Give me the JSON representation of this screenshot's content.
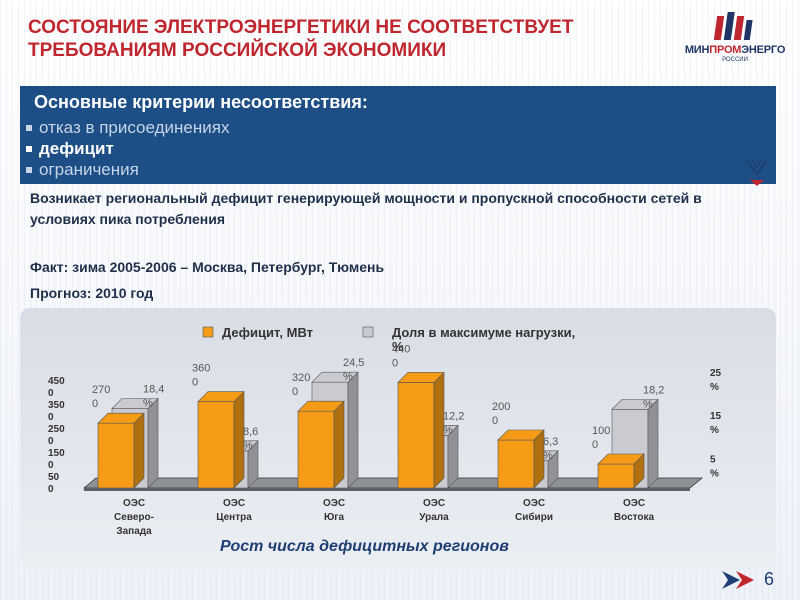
{
  "title": "Состояние электроэнергетики не соответствует требованиям российской экономики",
  "logo": {
    "left": "МИН",
    "mid": "ПРОМ",
    "right": "ЭНЕРГО",
    "sub": "РОССИИ"
  },
  "criteria": {
    "heading": "Основные критерии несоответствия:",
    "items": [
      {
        "label": "отказ в присоединениях",
        "active": false
      },
      {
        "label": "дефицит",
        "active": true
      },
      {
        "label": "ограничения",
        "active": false
      }
    ]
  },
  "description": "Возникает региональный дефицит генерирующей мощности и пропускной способности сетей в условиях пика потребления",
  "fact": "Факт:  зима 2005-2006 – Москва, Петербург, Тюмень",
  "forecast": "Прогноз:     2010 год",
  "caption": "Рост числа дефицитных регионов",
  "page_number": "6",
  "chart_data": {
    "type": "bar",
    "categories": [
      "ОЭС Северо-Запада",
      "ОЭС Центра",
      "ОЭС Юга",
      "ОЭС Урала",
      "ОЭС Сибири",
      "ОЭС Востока"
    ],
    "category_lines": [
      [
        "ОЭС",
        "Северо-",
        "Запада"
      ],
      [
        "ОЭС",
        "Центра"
      ],
      [
        "ОЭС",
        "Юга"
      ],
      [
        "ОЭС",
        "Урала"
      ],
      [
        "ОЭС",
        "Сибири"
      ],
      [
        "ОЭС",
        "Востока"
      ]
    ],
    "series": [
      {
        "name": "Дефицит, МВт",
        "axis": "left",
        "color": "#f59b16",
        "values": [
          2700,
          3600,
          3200,
          4400,
          2000,
          1000
        ],
        "labels": [
          [
            "270",
            "0"
          ],
          [
            "360",
            "0"
          ],
          [
            "320",
            "0"
          ],
          [
            "440",
            "0"
          ],
          [
            "200",
            "0"
          ],
          [
            "100",
            "0"
          ]
        ]
      },
      {
        "name": "Доля в максимуме нагрузки, %",
        "axis": "right",
        "color": "#c9cbd0",
        "values": [
          18.4,
          8.6,
          24.5,
          12.2,
          6.3,
          18.2
        ],
        "labels": [
          [
            "18,4",
            "%"
          ],
          [
            "8,6",
            "%"
          ],
          [
            "24,5",
            "%"
          ],
          [
            "12,2",
            "%"
          ],
          [
            "6,3",
            "%"
          ],
          [
            "18,2",
            "%"
          ]
        ]
      }
    ],
    "legend": [
      [
        "Дефицит, МВт"
      ],
      [
        "Доля в максимуме нагрузки,",
        "%"
      ]
    ],
    "left_axis": {
      "ylim": [
        0,
        4500
      ],
      "ticks": [
        [
          "450",
          "0"
        ],
        [
          "350",
          "0"
        ],
        [
          "250",
          "0"
        ],
        [
          "150",
          "0"
        ],
        [
          "50",
          "0"
        ]
      ],
      "tick_values": [
        4500,
        3500,
        2500,
        1500,
        500
      ]
    },
    "right_axis": {
      "ylim": [
        0,
        25
      ],
      "ticks": [
        [
          "25",
          "%"
        ],
        [
          "15",
          "%"
        ],
        [
          "5",
          "%"
        ]
      ],
      "tick_values": [
        25,
        15,
        5
      ]
    },
    "legend_position": "top"
  }
}
